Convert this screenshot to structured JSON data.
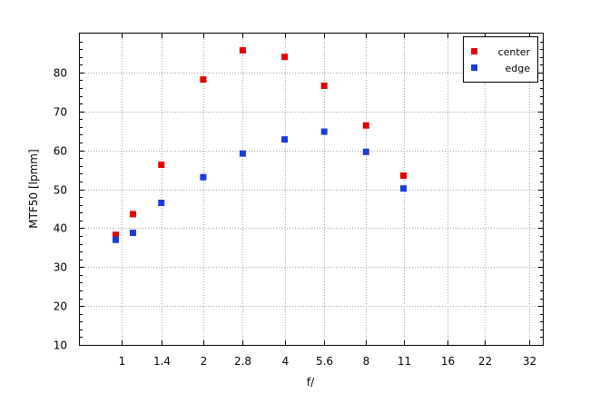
{
  "chart_data": {
    "type": "scatter",
    "xlabel": "f/",
    "ylabel": "MTF50 [lpmm]",
    "x_scale": "log2",
    "x_range": [
      0.7,
      36
    ],
    "x_ticks": [
      1,
      1.4,
      2,
      2.8,
      4,
      5.6,
      8,
      11,
      16,
      22,
      32
    ],
    "x_tick_labels": [
      "1",
      "1.4",
      "2",
      "2.8",
      "4",
      "5.6",
      "8",
      "11",
      "16",
      "22",
      "32"
    ],
    "ylim": [
      10,
      90
    ],
    "y_ticks": [
      10,
      20,
      30,
      40,
      50,
      60,
      70,
      80
    ],
    "y_tick_labels": [
      "10",
      "20",
      "30",
      "40",
      "50",
      "60",
      "70",
      "80"
    ],
    "grid": true,
    "legend_position": "top-right",
    "series": [
      {
        "name": "center",
        "color": "#e60000",
        "marker": "square",
        "x": [
          0.95,
          1.1,
          1.4,
          2,
          2.8,
          4,
          5.6,
          8,
          11
        ],
        "y": [
          38.3,
          43.6,
          56.3,
          78.2,
          85.7,
          84.0,
          76.6,
          66.4,
          53.5
        ]
      },
      {
        "name": "edge",
        "color": "#1e3cdc",
        "marker": "square",
        "x": [
          0.95,
          1.1,
          1.4,
          2,
          2.8,
          4,
          5.6,
          8,
          11
        ],
        "y": [
          37.0,
          38.8,
          46.5,
          53.1,
          59.2,
          62.8,
          64.8,
          59.6,
          50.2
        ]
      }
    ]
  }
}
